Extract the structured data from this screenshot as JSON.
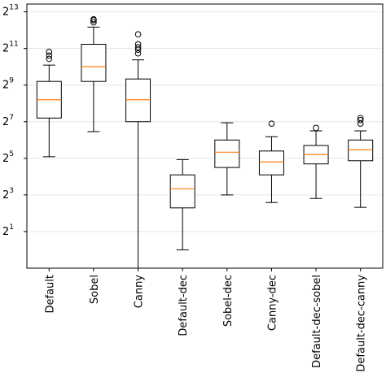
{
  "chart_data": {
    "type": "box",
    "title": "",
    "xlabel": "",
    "ylabel": "",
    "y_scale": "log2",
    "ylim": [
      0.5,
      11000
    ],
    "grid": "horizontal",
    "y_ticks": [
      {
        "base": "2",
        "exp": "1",
        "value": 2
      },
      {
        "base": "2",
        "exp": "3",
        "value": 8
      },
      {
        "base": "2",
        "exp": "5",
        "value": 32
      },
      {
        "base": "2",
        "exp": "7",
        "value": 128
      },
      {
        "base": "2",
        "exp": "9",
        "value": 512
      },
      {
        "base": "2",
        "exp": "11",
        "value": 2048
      },
      {
        "base": "2",
        "exp": "13",
        "value": 8192
      }
    ],
    "categories": [
      "Default",
      "Sobel",
      "Canny",
      "Default-dec",
      "Sobel-dec",
      "Canny-dec",
      "Default-dec-sobel",
      "Default-dec-canny"
    ],
    "boxes": [
      {
        "whisker_low": 34,
        "q1": 147,
        "median": 294,
        "q3": 588,
        "whisker_high": 1090,
        "fliers": [
          1380,
          1560,
          1800
        ]
      },
      {
        "whisker_low": 88,
        "q1": 588,
        "median": 1030,
        "q3": 2400,
        "whisker_high": 4600,
        "fliers": [
          5500,
          5950,
          6200
        ]
      },
      {
        "whisker_low": 0.5,
        "q1": 128,
        "median": 294,
        "q3": 645,
        "whisker_high": 1330,
        "fliers": [
          1700,
          1950,
          2150,
          2400,
          3500
        ]
      },
      {
        "whisker_low": 1.0,
        "q1": 4.9,
        "median": 10.1,
        "q3": 17.1,
        "whisker_high": 30.5
      },
      {
        "whisker_low": 8.0,
        "q1": 22.6,
        "median": 40.3,
        "q3": 64,
        "whisker_high": 123
      },
      {
        "whisker_low": 6.0,
        "q1": 17.1,
        "median": 27.9,
        "q3": 42.2,
        "whisker_high": 72.5,
        "fliers": [
          119
        ]
      },
      {
        "whisker_low": 7.0,
        "q1": 25.9,
        "median": 36.8,
        "q3": 52,
        "whisker_high": 90.5,
        "fliers": [
          101
        ]
      },
      {
        "whisker_low": 5.0,
        "q1": 29.2,
        "median": 44.1,
        "q3": 64,
        "whisker_high": 90.5,
        "fliers": [
          119,
          136,
          147
        ]
      }
    ],
    "colors": {
      "box": "#000000",
      "median": "#ff7f0e",
      "grid": "#e6e6e6"
    }
  }
}
